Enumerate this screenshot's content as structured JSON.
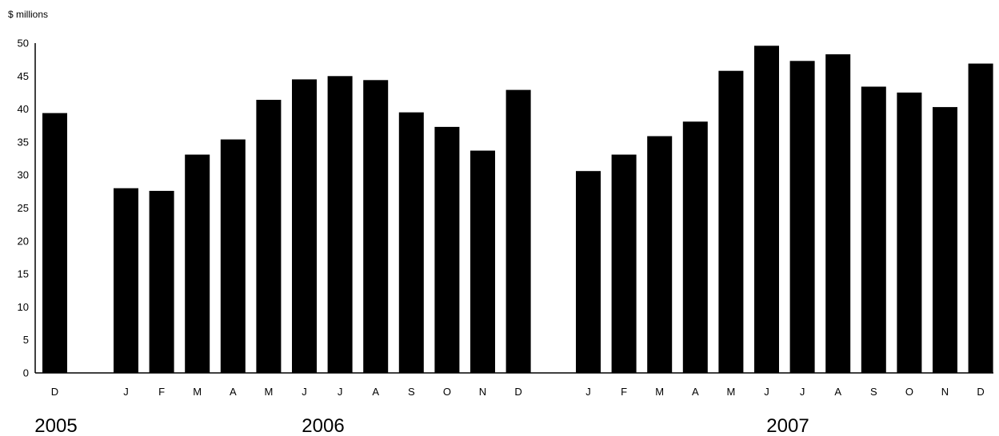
{
  "chart_data": {
    "type": "bar",
    "ylabel": "$ millions",
    "ylim": [
      0,
      50
    ],
    "yticks": [
      "0",
      "5",
      "10",
      "15",
      "20",
      "25",
      "30",
      "35",
      "40",
      "45",
      "50"
    ],
    "bar_color": "#000000",
    "groups": [
      {
        "year": "2005",
        "categories": [
          "D"
        ],
        "values": [
          39.4
        ]
      },
      {
        "year": "2006",
        "categories": [
          "J",
          "F",
          "M",
          "A",
          "M",
          "J",
          "J",
          "A",
          "S",
          "O",
          "N",
          "D"
        ],
        "values": [
          28.0,
          27.6,
          33.1,
          35.4,
          41.4,
          44.5,
          45.0,
          44.4,
          39.5,
          37.3,
          33.7,
          42.9
        ]
      },
      {
        "year": "2007",
        "categories": [
          "J",
          "F",
          "M",
          "A",
          "M",
          "J",
          "J",
          "A",
          "S",
          "O",
          "N",
          "D"
        ],
        "values": [
          30.6,
          33.1,
          35.9,
          38.1,
          45.8,
          49.6,
          47.3,
          48.3,
          43.4,
          42.5,
          40.3,
          46.9
        ]
      }
    ]
  }
}
